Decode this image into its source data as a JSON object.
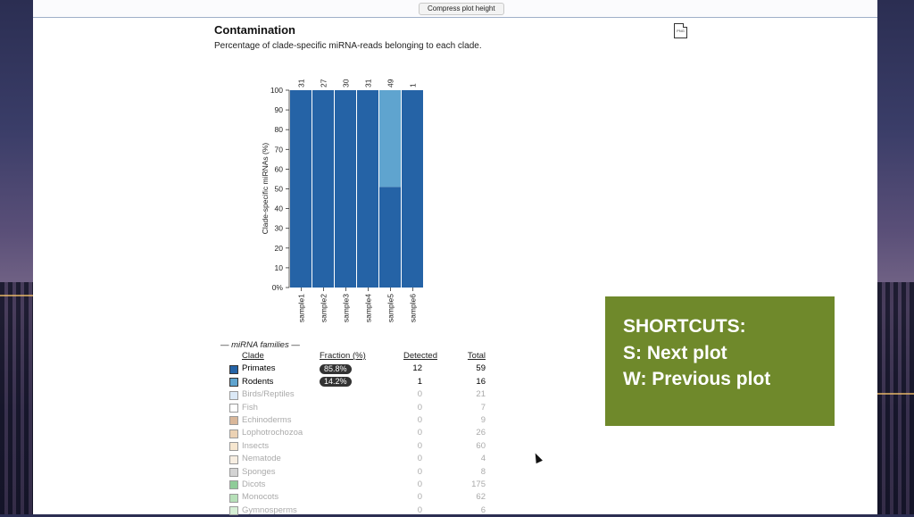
{
  "toolbar": {
    "compress_label": "Compress plot height"
  },
  "section": {
    "title": "Contamination",
    "subtitle": "Percentage of clade-specific miRNA-reads belonging to each clade.",
    "export_icon": "png-file-icon",
    "export_label": "PNG"
  },
  "chart_data": {
    "type": "bar",
    "stacked": true,
    "ylabel": "Clade-specific miRNAs (%)",
    "ylim": [
      0,
      100
    ],
    "yticks": [
      "0%",
      "10",
      "20",
      "30",
      "40",
      "50",
      "60",
      "70",
      "80",
      "90",
      "100"
    ],
    "categories": [
      "sample1",
      "sample2",
      "sample3",
      "sample4",
      "sample5",
      "sample6"
    ],
    "top_labels": [
      "31",
      "27",
      "30",
      "31",
      "49",
      "1"
    ],
    "series": [
      {
        "name": "Primates",
        "color": "#2563a6",
        "values": [
          100,
          100,
          100,
          100,
          51,
          100
        ]
      },
      {
        "name": "Rodents",
        "color": "#5fa4cf",
        "values": [
          0,
          0,
          0,
          0,
          49,
          0
        ]
      }
    ]
  },
  "legend": {
    "group_header": "— miRNA families —",
    "columns": {
      "clade": "Clade",
      "fraction": "Fraction (%)",
      "detected": "Detected",
      "total": "Total"
    },
    "rows": [
      {
        "name": "Primates",
        "color": "#2563a6",
        "fraction": "85.8%",
        "detected": "12",
        "total": "59",
        "active": true
      },
      {
        "name": "Rodents",
        "color": "#5fa4cf",
        "fraction": "14.2%",
        "detected": "1",
        "total": "16",
        "active": true
      },
      {
        "name": "Birds/Reptiles",
        "color": "#dbe9f7",
        "fraction": "",
        "detected": "0",
        "total": "21",
        "active": false
      },
      {
        "name": "Fish",
        "color": "#ffffff",
        "fraction": "",
        "detected": "0",
        "total": "7",
        "active": false
      },
      {
        "name": "Echinoderms",
        "color": "#d9b79a",
        "fraction": "",
        "detected": "0",
        "total": "9",
        "active": false
      },
      {
        "name": "Lophotrochozoa",
        "color": "#ecd2b4",
        "fraction": "",
        "detected": "0",
        "total": "26",
        "active": false
      },
      {
        "name": "Insects",
        "color": "#f6e6cf",
        "fraction": "",
        "detected": "0",
        "total": "60",
        "active": false
      },
      {
        "name": "Nematode",
        "color": "#f7eee2",
        "fraction": "",
        "detected": "0",
        "total": "4",
        "active": false
      },
      {
        "name": "Sponges",
        "color": "#d3d3d3",
        "fraction": "",
        "detected": "0",
        "total": "8",
        "active": false
      },
      {
        "name": "Dicots",
        "color": "#8fcc98",
        "fraction": "",
        "detected": "0",
        "total": "175",
        "active": false
      },
      {
        "name": "Monocots",
        "color": "#b6e0b8",
        "fraction": "",
        "detected": "0",
        "total": "62",
        "active": false
      },
      {
        "name": "Gymnosperms",
        "color": "#d6efd5",
        "fraction": "",
        "detected": "0",
        "total": "6",
        "active": false
      }
    ]
  },
  "shortcuts": {
    "title": "SHORTCUTS:",
    "next": "S: Next plot",
    "prev": "W: Previous plot"
  }
}
